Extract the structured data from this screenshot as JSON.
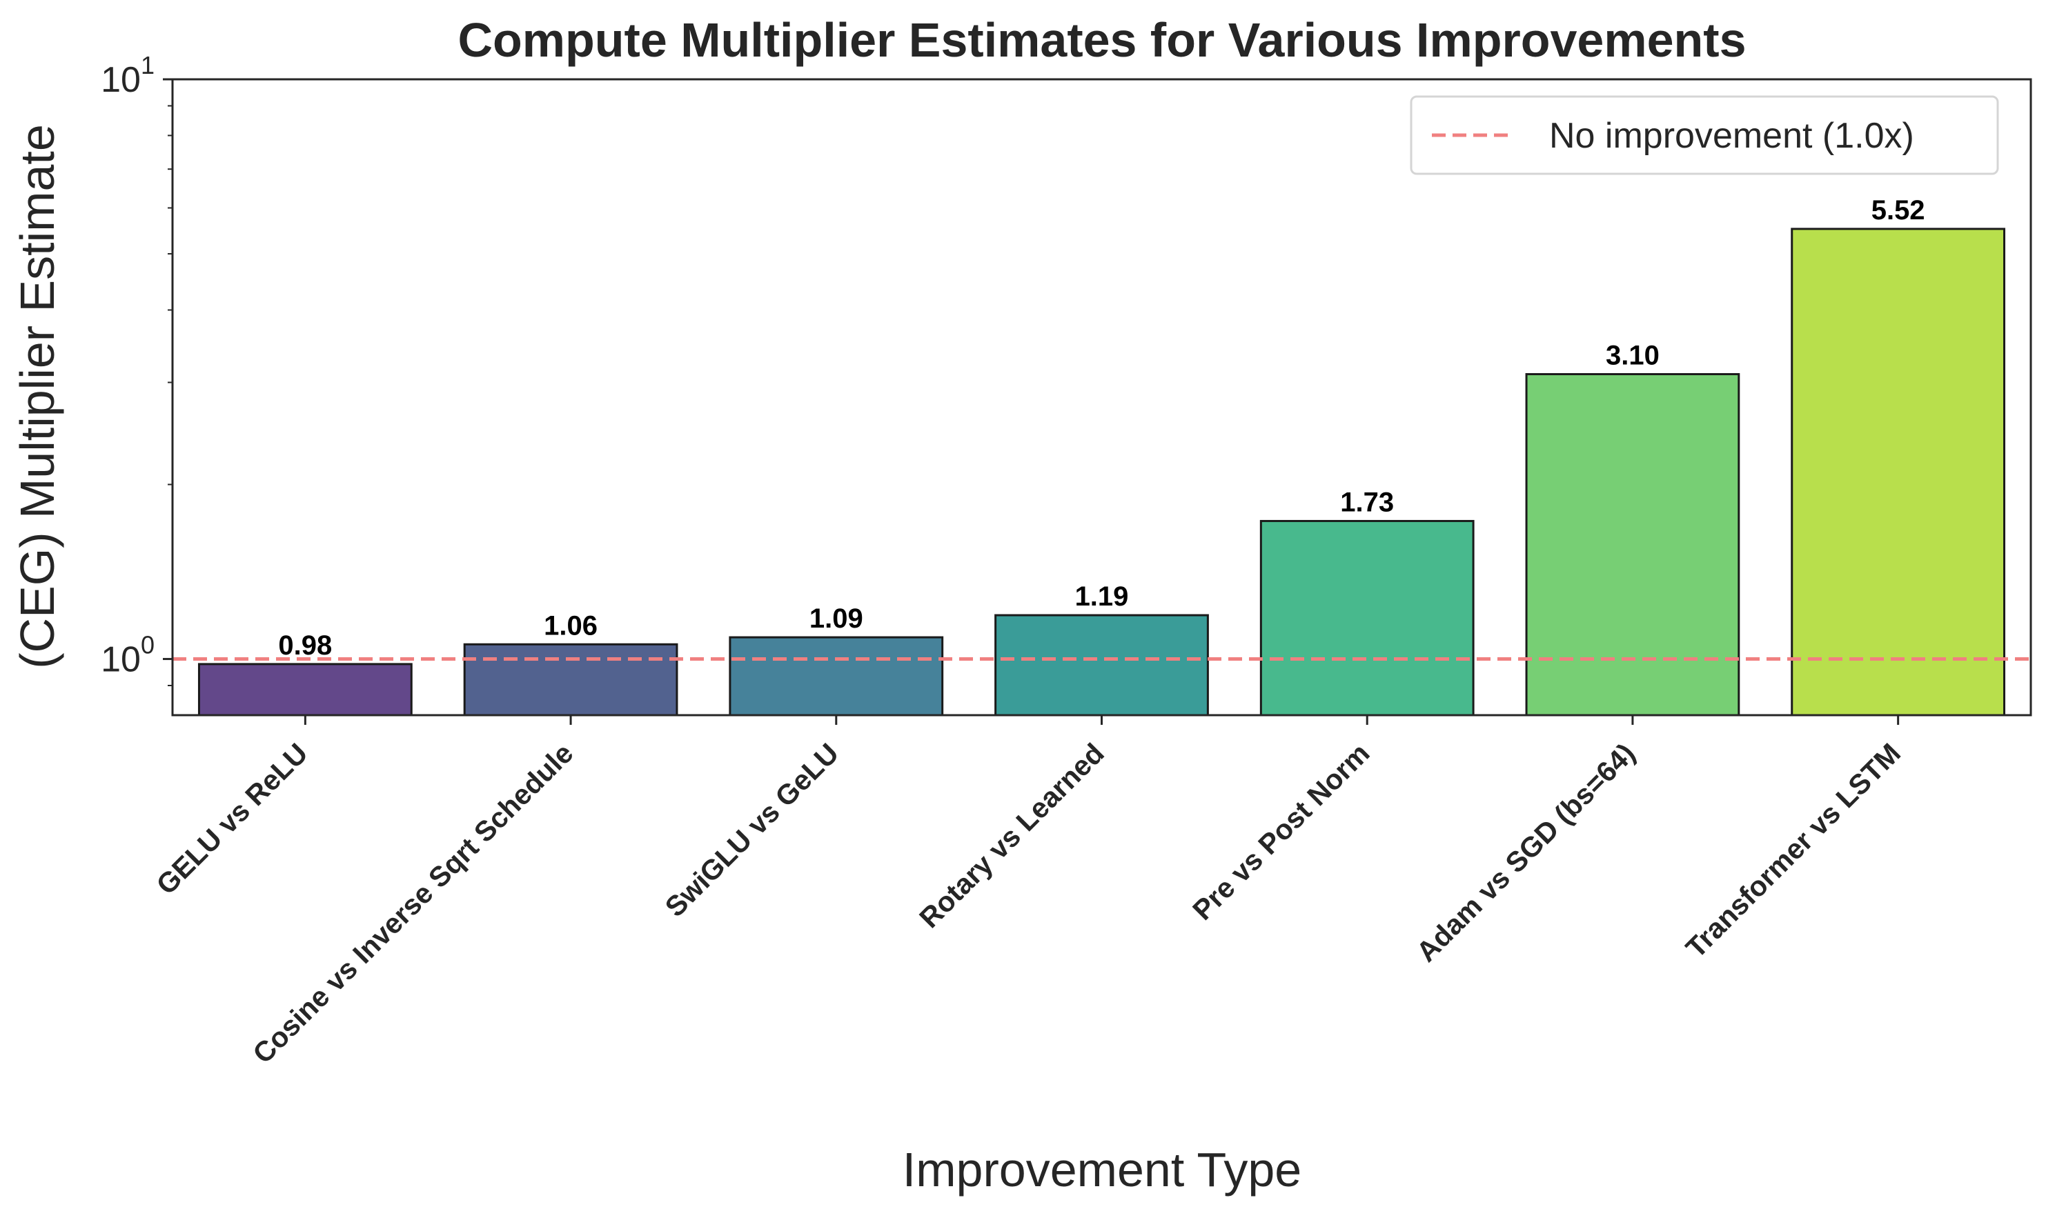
{
  "chart_data": {
    "type": "bar",
    "title": "Compute Multiplier Estimates for Various Improvements",
    "xlabel": "Improvement Type",
    "ylabel": "(CEG) Multiplier Estimate",
    "yscale": "log",
    "ylim": [
      0.8,
      10
    ],
    "yticks": [
      {
        "value": 1,
        "base": "10",
        "exp": "0"
      },
      {
        "value": 10,
        "base": "10",
        "exp": "1"
      }
    ],
    "categories": [
      "GELU vs ReLU",
      "Cosine vs Inverse Sqrt Schedule",
      "SwiGLU vs GeLU",
      "Rotary vs Learned",
      "Pre vs Post Norm",
      "Adam vs SGD (bs=64)",
      "Transformer vs LSTM"
    ],
    "values": [
      0.98,
      1.06,
      1.09,
      1.19,
      1.73,
      3.1,
      5.52
    ],
    "value_labels": [
      "0.98",
      "1.06",
      "1.09",
      "1.19",
      "1.73",
      "3.10",
      "5.52"
    ],
    "colors": [
      "#63488a",
      "#52628f",
      "#46829a",
      "#3a9c98",
      "#48b98d",
      "#77cf74",
      "#b8df4c"
    ],
    "reference_line": {
      "value": 1.0,
      "label": "No improvement (1.0x)",
      "color": "#f08080"
    },
    "legend_position": "top-right",
    "grid": false
  }
}
